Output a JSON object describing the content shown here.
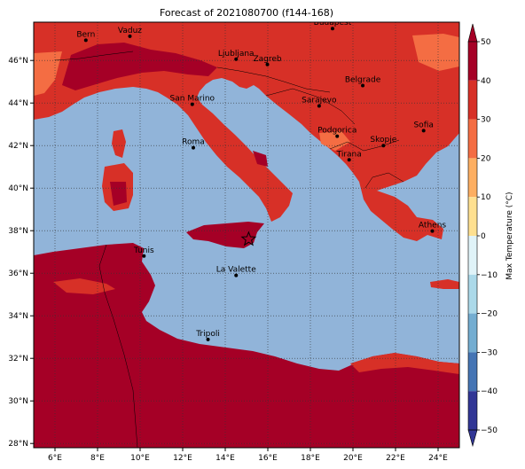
{
  "title": "Forecast of 2021080700 (f144-168)",
  "map": {
    "lon_range": [
      5,
      25
    ],
    "lat_range": [
      27.8,
      47.8
    ],
    "lon_ticks": [
      "6°E",
      "8°E",
      "10°E",
      "12°E",
      "14°E",
      "16°E",
      "18°E",
      "20°E",
      "22°E",
      "24°E"
    ],
    "lat_ticks": [
      "28°N",
      "30°N",
      "32°N",
      "34°N",
      "36°N",
      "38°N",
      "40°N",
      "42°N",
      "44°N",
      "46°N"
    ],
    "gridlines": "dotted",
    "colors": {
      "sea": "#91b4d9",
      "land_30_40": "#d73027",
      "land_40_50": "#a50026",
      "land_20_30": "#f46d43"
    },
    "marker_symbol": "star",
    "marker_location": [
      15.1,
      37.6
    ],
    "cities": [
      {
        "name": "Bern",
        "lon": 7.45,
        "lat": 46.95
      },
      {
        "name": "Vaduz",
        "lon": 9.52,
        "lat": 47.14
      },
      {
        "name": "Budapest",
        "lon": 19.04,
        "lat": 47.5
      },
      {
        "name": "Ljubljana",
        "lon": 14.51,
        "lat": 46.06
      },
      {
        "name": "Zagreb",
        "lon": 15.98,
        "lat": 45.81
      },
      {
        "name": "Belgrade",
        "lon": 20.46,
        "lat": 44.82
      },
      {
        "name": "San Marino",
        "lon": 12.45,
        "lat": 43.94
      },
      {
        "name": "Sarajevo",
        "lon": 18.41,
        "lat": 43.86
      },
      {
        "name": "Sofia",
        "lon": 23.32,
        "lat": 42.7
      },
      {
        "name": "Podgorica",
        "lon": 19.26,
        "lat": 42.44
      },
      {
        "name": "Skopje",
        "lon": 21.43,
        "lat": 42.0
      },
      {
        "name": "Roma",
        "lon": 12.5,
        "lat": 41.9
      },
      {
        "name": "Tirana",
        "lon": 19.82,
        "lat": 41.33
      },
      {
        "name": "Athens",
        "lon": 23.73,
        "lat": 37.98
      },
      {
        "name": "Tunis",
        "lon": 10.18,
        "lat": 36.81
      },
      {
        "name": "La Valette",
        "lon": 14.51,
        "lat": 35.9
      },
      {
        "name": "Tripoli",
        "lon": 13.19,
        "lat": 32.89
      }
    ]
  },
  "colorbar": {
    "label": "Max Temperature (°C)",
    "ticks": [
      "50",
      "40",
      "30",
      "20",
      "10",
      "0",
      "−10",
      "−20",
      "−30",
      "−40",
      "−50"
    ],
    "colors": [
      "#a50026",
      "#d73027",
      "#f46d43",
      "#fdae61",
      "#fee090",
      "#ffffbf",
      "#e0f3f8",
      "#abd9e9",
      "#74add1",
      "#4575b4",
      "#313695"
    ]
  }
}
